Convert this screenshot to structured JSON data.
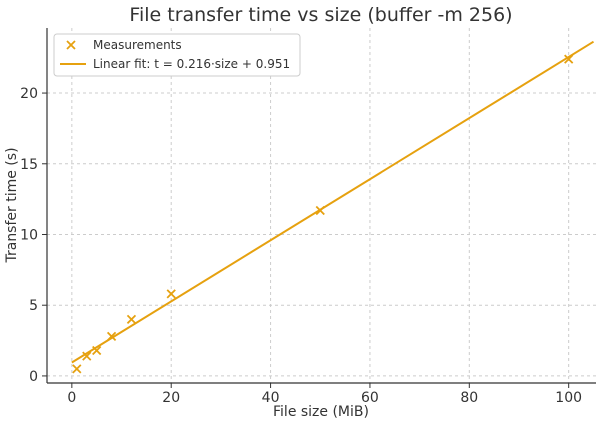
{
  "chart_data": {
    "type": "scatter",
    "title": "File transfer time vs size (buffer -m 256)",
    "xlabel": "File size (MiB)",
    "ylabel": "Transfer time (s)",
    "xlim": [
      -5,
      105.5
    ],
    "ylim": [
      -0.5,
      24.6
    ],
    "xticks": [
      0,
      20,
      40,
      60,
      80,
      100
    ],
    "yticks": [
      0,
      5,
      10,
      15,
      20
    ],
    "grid": true,
    "legend_position": "top-left",
    "series": [
      {
        "name": "Measurements",
        "kind": "scatter",
        "marker": "x",
        "color": "#e6a10f",
        "x": [
          1,
          3,
          5,
          8,
          12,
          20,
          50,
          100
        ],
        "y": [
          0.5,
          1.4,
          1.8,
          2.8,
          4.0,
          5.8,
          11.7,
          22.4
        ]
      },
      {
        "name": "Linear fit: t = 0.216·size + 0.951",
        "kind": "line",
        "color": "#e6a10f",
        "slope": 0.216,
        "intercept": 0.951,
        "x_range": [
          0,
          105
        ]
      }
    ]
  }
}
